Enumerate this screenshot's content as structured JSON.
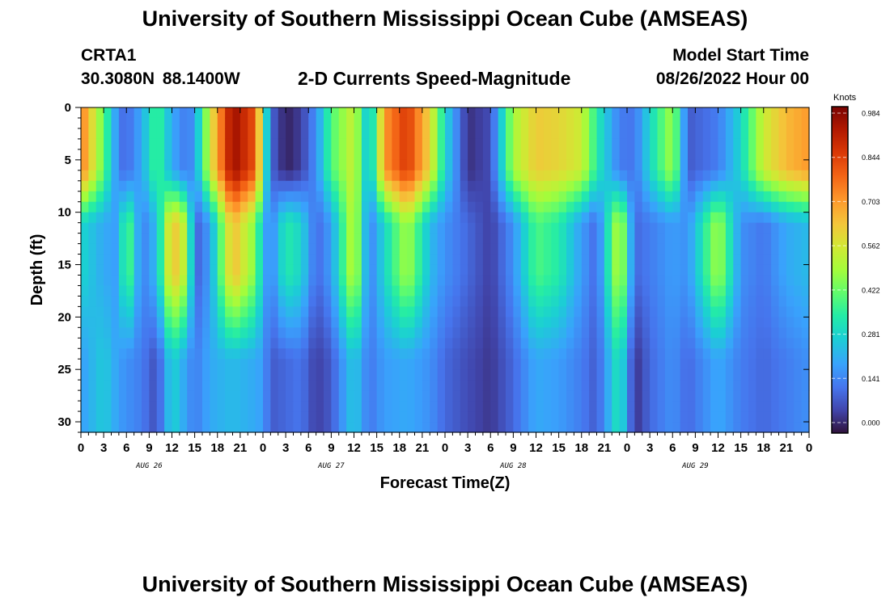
{
  "header": {
    "title": "University of Southern Mississippi Ocean Cube (AMSEAS)",
    "footer_title": "University of Southern Mississippi Ocean Cube (AMSEAS)",
    "station": "CRTA1",
    "coords": "30.3080N  88.1400W",
    "subtitle": "2-D Currents Speed-Magnitude",
    "model_start_label": "Model Start Time",
    "model_start_value": "08/26/2022 Hour 00"
  },
  "chart_data": {
    "type": "heatmap",
    "title": "2-D Currents Speed-Magnitude",
    "xlabel": "Forecast Time(Z)",
    "ylabel": "Depth (ft)",
    "x_range_hours": [
      0,
      96
    ],
    "y_range_ft": [
      0,
      31
    ],
    "y_inverted": true,
    "x_tick_labels": [
      "0",
      "3",
      "6",
      "9",
      "12",
      "15",
      "18",
      "21",
      "0",
      "3",
      "6",
      "9",
      "12",
      "15",
      "18",
      "21",
      "0",
      "3",
      "6",
      "9",
      "12",
      "15",
      "18",
      "21",
      "0",
      "3",
      "6",
      "9",
      "12",
      "15",
      "18",
      "21",
      "0"
    ],
    "y_ticks": [
      0,
      5,
      10,
      15,
      20,
      25,
      30
    ],
    "day_labels": [
      "AUG 26",
      "AUG 27",
      "AUG 28",
      "AUG 29"
    ],
    "colorbar": {
      "unit": "Knots",
      "ticks": [
        "0.984",
        "0.844",
        "0.703",
        "0.562",
        "0.422",
        "0.281",
        "0.141",
        "0.000"
      ],
      "vmin": 0.0,
      "vmax": 0.984,
      "colormap": "turbo"
    },
    "profiles": [
      {
        "t": 0,
        "top": 0.75,
        "mid": 0.3,
        "deep": 0.2
      },
      {
        "t": 3,
        "top": 0.42,
        "mid": 0.22,
        "deep": 0.28
      },
      {
        "t": 5,
        "top": 0.15,
        "mid": 0.2,
        "deep": 0.2
      },
      {
        "t": 6,
        "top": 0.12,
        "mid": 0.45,
        "deep": 0.18
      },
      {
        "t": 8,
        "top": 0.22,
        "mid": 0.15,
        "deep": 0.15
      },
      {
        "t": 10,
        "top": 0.4,
        "mid": 0.25,
        "deep": 0.08
      },
      {
        "t": 12,
        "top": 0.22,
        "mid": 0.65,
        "deep": 0.3
      },
      {
        "t": 14,
        "top": 0.14,
        "mid": 0.5,
        "deep": 0.2
      },
      {
        "t": 15,
        "top": 0.2,
        "mid": 0.1,
        "deep": 0.15
      },
      {
        "t": 17,
        "top": 0.55,
        "mid": 0.2,
        "deep": 0.22
      },
      {
        "t": 20,
        "top": 0.95,
        "mid": 0.65,
        "deep": 0.25
      },
      {
        "t": 23,
        "top": 0.8,
        "mid": 0.45,
        "deep": 0.22
      },
      {
        "t": 24,
        "top": 0.45,
        "mid": 0.25,
        "deep": 0.2
      },
      {
        "t": 25,
        "top": 0.12,
        "mid": 0.15,
        "deep": 0.1
      },
      {
        "t": 27,
        "top": 0.02,
        "mid": 0.35,
        "deep": 0.12
      },
      {
        "t": 29,
        "top": 0.06,
        "mid": 0.3,
        "deep": 0.14
      },
      {
        "t": 31,
        "top": 0.18,
        "mid": 0.12,
        "deep": 0.06
      },
      {
        "t": 33,
        "top": 0.4,
        "mid": 0.2,
        "deep": 0.1
      },
      {
        "t": 36,
        "top": 0.55,
        "mid": 0.55,
        "deep": 0.28
      },
      {
        "t": 38,
        "top": 0.22,
        "mid": 0.15,
        "deep": 0.14
      },
      {
        "t": 40,
        "top": 0.7,
        "mid": 0.3,
        "deep": 0.2
      },
      {
        "t": 43,
        "top": 0.85,
        "mid": 0.5,
        "deep": 0.22
      },
      {
        "t": 46,
        "top": 0.6,
        "mid": 0.25,
        "deep": 0.18
      },
      {
        "t": 48,
        "top": 0.3,
        "mid": 0.18,
        "deep": 0.12
      },
      {
        "t": 51,
        "top": 0.04,
        "mid": 0.12,
        "deep": 0.08
      },
      {
        "t": 54,
        "top": 0.08,
        "mid": 0.06,
        "deep": 0.05
      },
      {
        "t": 57,
        "top": 0.5,
        "mid": 0.18,
        "deep": 0.12
      },
      {
        "t": 60,
        "top": 0.62,
        "mid": 0.4,
        "deep": 0.22
      },
      {
        "t": 63,
        "top": 0.6,
        "mid": 0.35,
        "deep": 0.2
      },
      {
        "t": 66,
        "top": 0.55,
        "mid": 0.2,
        "deep": 0.15
      },
      {
        "t": 68,
        "top": 0.35,
        "mid": 0.12,
        "deep": 0.1
      },
      {
        "t": 71,
        "top": 0.15,
        "mid": 0.55,
        "deep": 0.35
      },
      {
        "t": 73,
        "top": 0.14,
        "mid": 0.12,
        "deep": 0.04
      },
      {
        "t": 75,
        "top": 0.3,
        "mid": 0.15,
        "deep": 0.12
      },
      {
        "t": 78,
        "top": 0.5,
        "mid": 0.2,
        "deep": 0.18
      },
      {
        "t": 80,
        "top": 0.1,
        "mid": 0.18,
        "deep": 0.12
      },
      {
        "t": 84,
        "top": 0.15,
        "mid": 0.5,
        "deep": 0.22
      },
      {
        "t": 87,
        "top": 0.3,
        "mid": 0.18,
        "deep": 0.15
      },
      {
        "t": 90,
        "top": 0.55,
        "mid": 0.14,
        "deep": 0.12
      },
      {
        "t": 93,
        "top": 0.65,
        "mid": 0.22,
        "deep": 0.15
      },
      {
        "t": 96,
        "top": 0.7,
        "mid": 0.25,
        "deep": 0.18
      }
    ]
  }
}
